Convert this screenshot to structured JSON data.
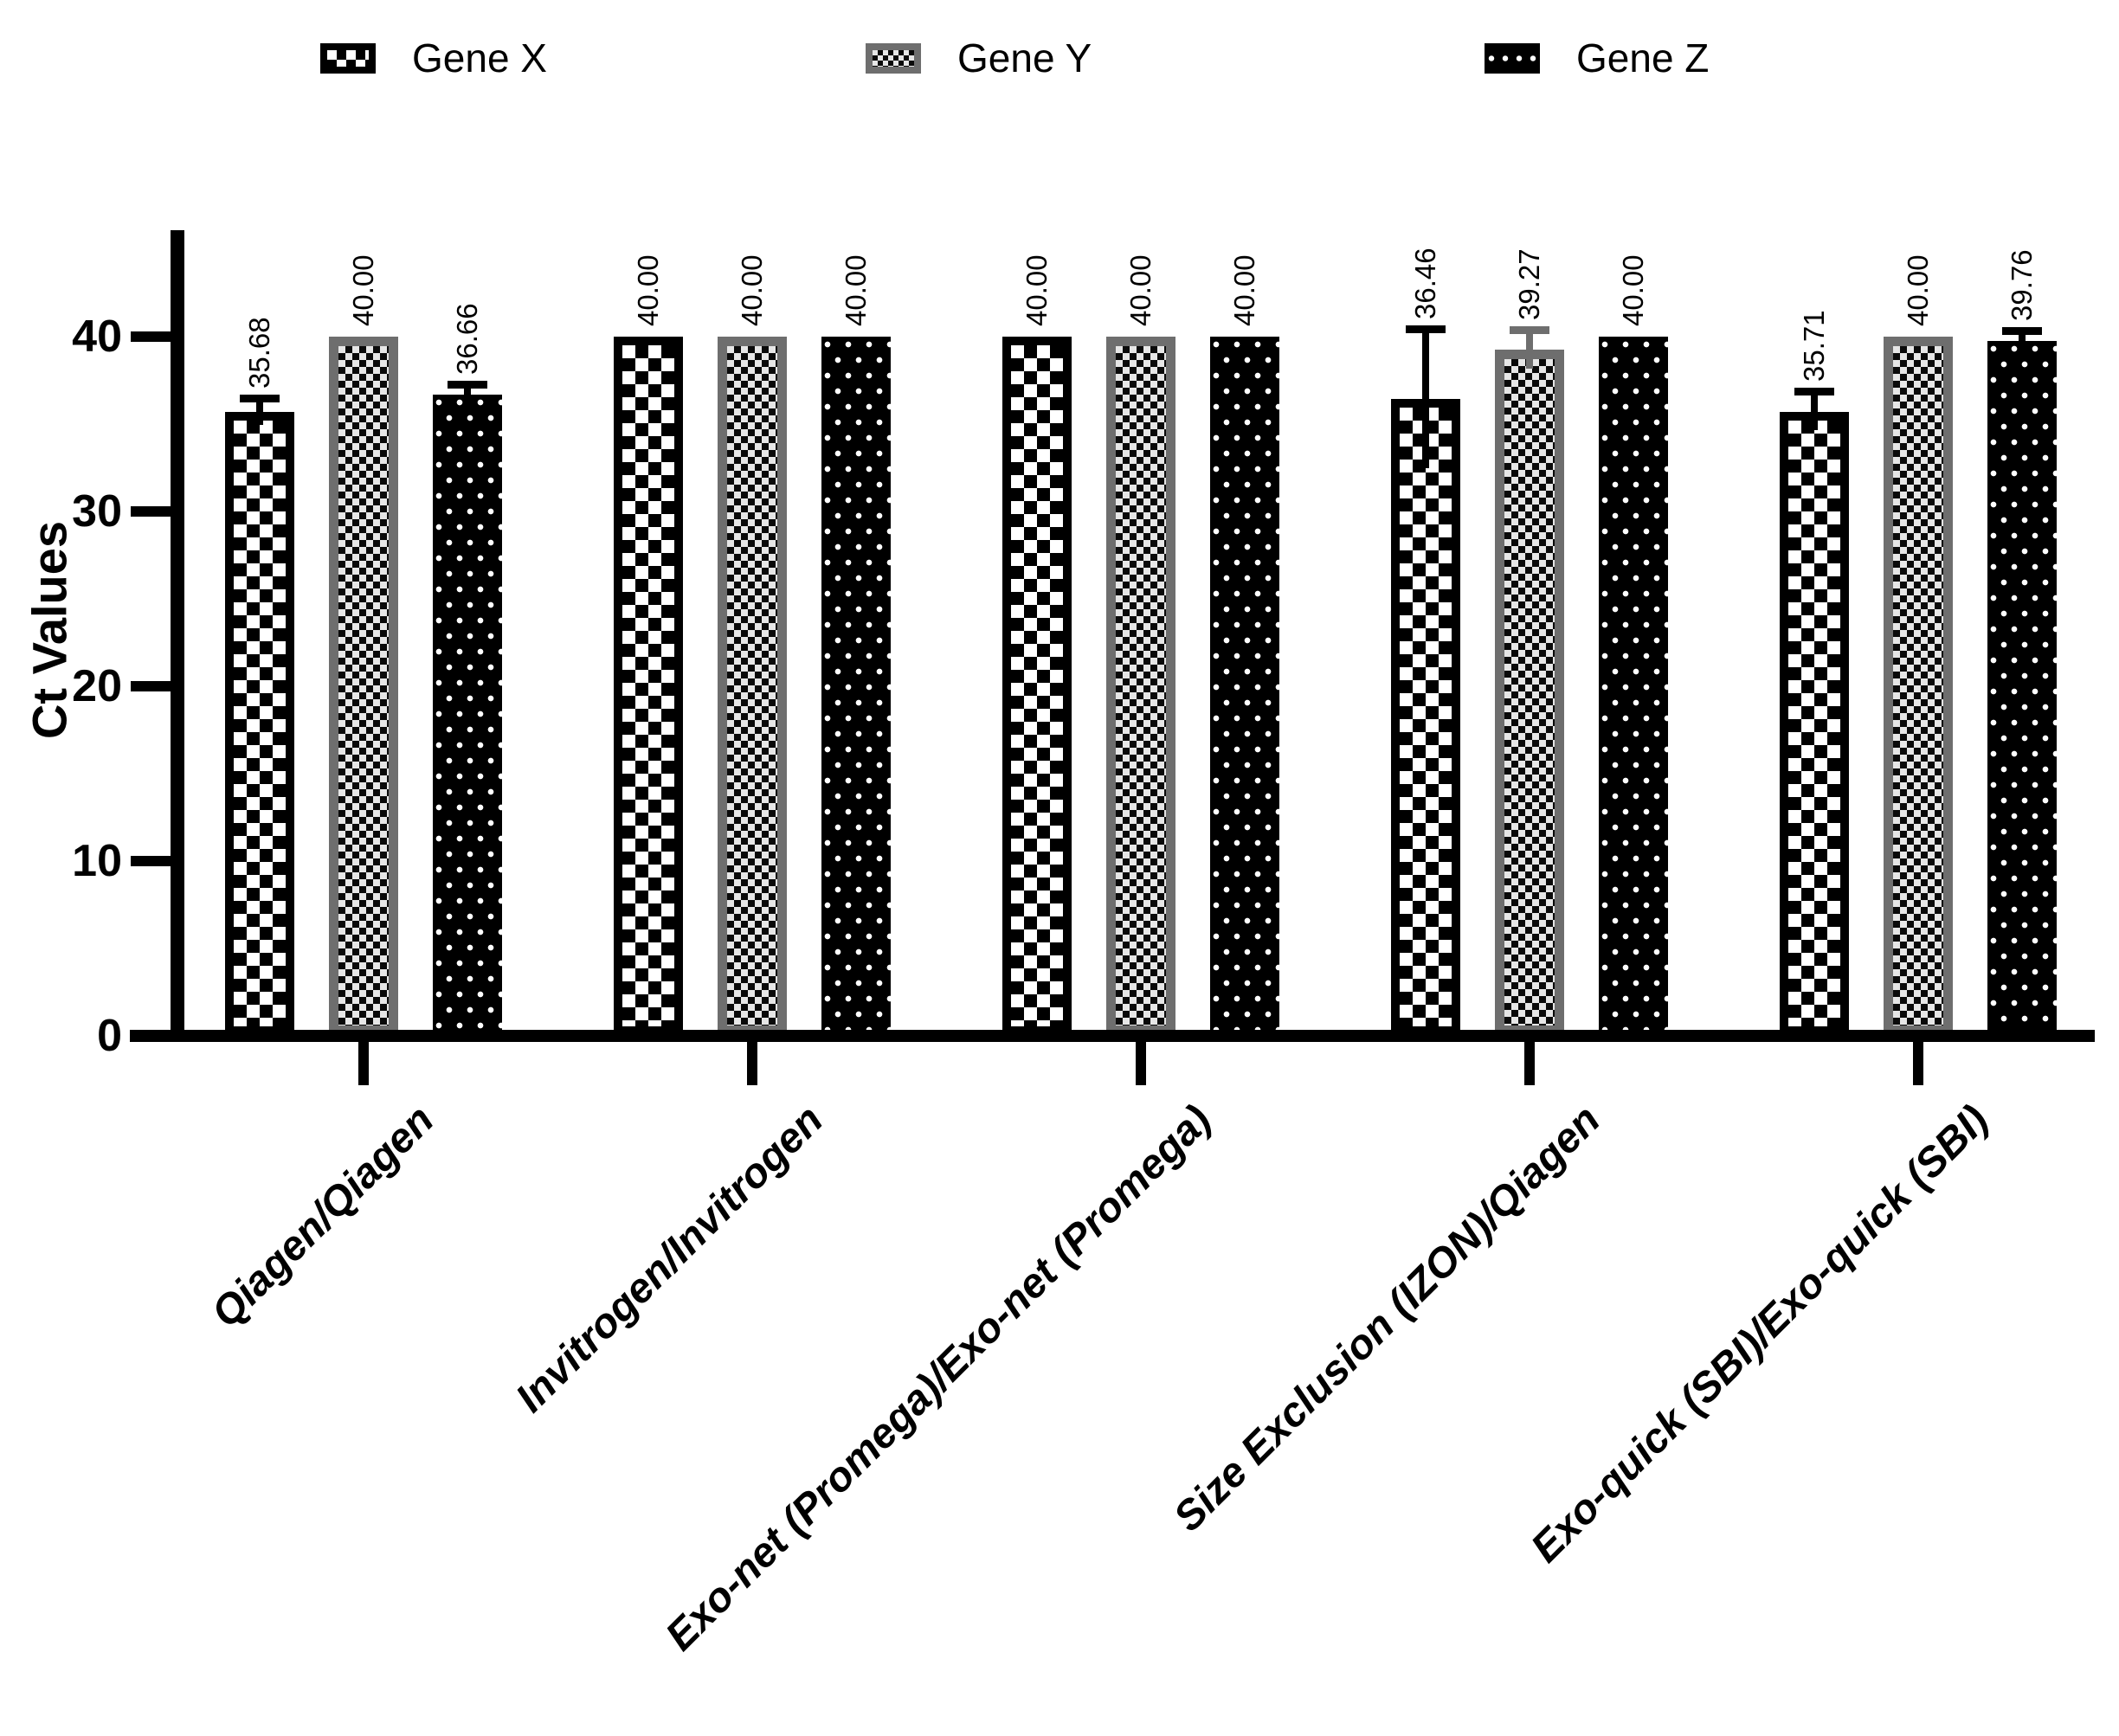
{
  "colors": {
    "black": "#000000",
    "gray_border": "#6e6e6e",
    "light_checker": "#e6e6e6",
    "background": "#ffffff"
  },
  "legend": {
    "position": "top",
    "items": [
      {
        "label": "Gene X",
        "pattern": "coarse-checker"
      },
      {
        "label": "Gene Y",
        "pattern": "fine-checker"
      },
      {
        "label": "Gene Z",
        "pattern": "dots"
      }
    ]
  },
  "chart_data": {
    "type": "bar",
    "title": "",
    "xlabel": "",
    "ylabel": "Ct Values",
    "ylim": [
      0,
      46
    ],
    "yticks": [
      0,
      10,
      20,
      30,
      40
    ],
    "grid": "off",
    "legend_position": "top",
    "categories": [
      "Qiagen/Qiagen",
      "Invitrogen/Invitrogen",
      "Exo-net (Promega)/Exo-net (Promega)",
      "Size Exclusion (IZON)/Qiagen",
      "Exo-quick (SBI)/Exo-quick (SBI)"
    ],
    "series": [
      {
        "name": "Gene X",
        "pattern": "coarse-checker",
        "values": [
          35.68,
          40.0,
          40.0,
          36.46,
          35.71
        ],
        "labels": [
          "35.68",
          "40.00",
          "40.00",
          "36.46",
          "35.71"
        ],
        "errors_upper": [
          0.75,
          0,
          0,
          3.95,
          1.1
        ]
      },
      {
        "name": "Gene Y",
        "pattern": "fine-checker",
        "values": [
          40.0,
          40.0,
          40.0,
          39.27,
          40.0
        ],
        "labels": [
          "40.00",
          "40.00",
          "40.00",
          "39.27",
          "40.00"
        ],
        "errors_upper": [
          0,
          0,
          0,
          1.1,
          0
        ]
      },
      {
        "name": "Gene Z",
        "pattern": "dots",
        "values": [
          36.66,
          40.0,
          40.0,
          40.0,
          39.76
        ],
        "labels": [
          "36.66",
          "40.00",
          "40.00",
          "40.00",
          "39.76"
        ],
        "errors_upper": [
          0.55,
          0,
          0,
          0,
          0.55
        ]
      }
    ]
  }
}
